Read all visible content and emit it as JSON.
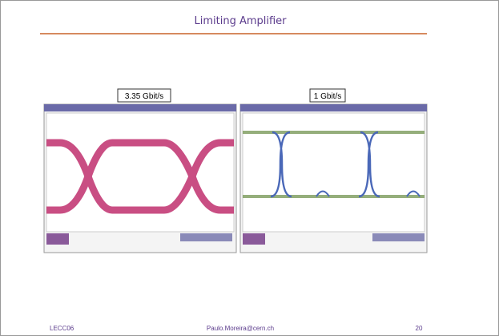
{
  "slide": {
    "title": "Limiting Amplifier",
    "panels": [
      {
        "label": "3.35 Gbit/s"
      },
      {
        "label": "1 Gbit/s"
      }
    ],
    "footer": {
      "left": "LECC06",
      "center": "Paulo.Moreira@cern.ch",
      "right": "20"
    }
  }
}
